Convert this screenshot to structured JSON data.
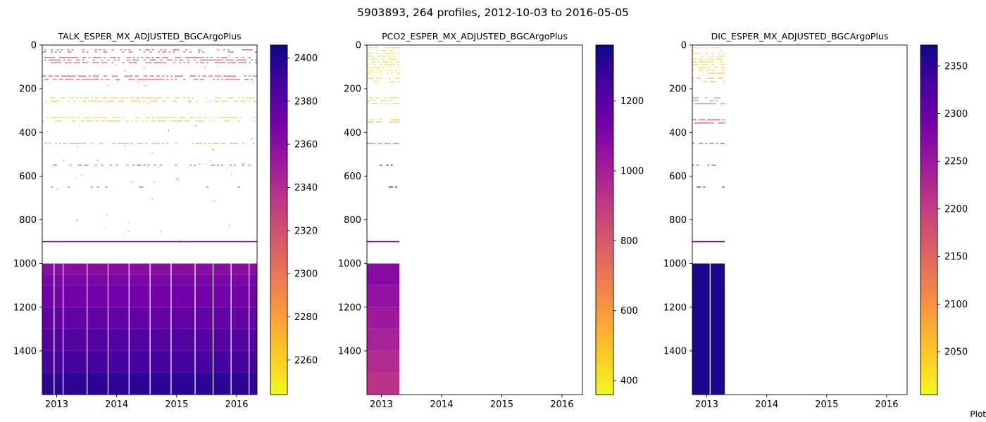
{
  "figure": {
    "title": "5903893, 264 profiles, 2012-10-03 to 2016-05-05",
    "footer_note": "Plot"
  },
  "colormap": {
    "name": "plasma",
    "stops": [
      "#f0f921",
      "#fdca26",
      "#fb9f3a",
      "#ed7953",
      "#d8576b",
      "#bd3786",
      "#9c179e",
      "#7201a8",
      "#46039f",
      "#0d0887"
    ]
  },
  "chart_data": [
    {
      "type": "heatmap",
      "title": "TALK_ESPER_MX_ADJUSTED_BGCArgoPlus",
      "x_range": [
        2012.76,
        2016.34
      ],
      "x_ticks": [
        2013,
        2014,
        2015,
        2016
      ],
      "x_tick_labels": [
        "2013",
        "2014",
        "2015",
        "2016"
      ],
      "y_range": [
        0,
        1600
      ],
      "y_inverted": true,
      "y_ticks": [
        0,
        200,
        400,
        600,
        800,
        1000,
        1200,
        1400
      ],
      "y_tick_labels": [
        "0",
        "200",
        "400",
        "600",
        "800",
        "1000",
        "1200",
        "1400"
      ],
      "data_x_extent": [
        2012.76,
        2016.34
      ],
      "colorbar": {
        "range": [
          2244,
          2406
        ],
        "ticks": [
          2260,
          2280,
          2300,
          2320,
          2340,
          2360,
          2380,
          2400
        ],
        "tick_labels": [
          "2260",
          "2280",
          "2300",
          "2320",
          "2340",
          "2360",
          "2380",
          "2400"
        ]
      },
      "sparse_bands": [
        {
          "depth": [
            20,
            40
          ],
          "value": 2322,
          "density": 0.35
        },
        {
          "depth": [
            55,
            90
          ],
          "value": 2315,
          "density": 0.6
        },
        {
          "depth": [
            140,
            170
          ],
          "value": 2318,
          "density": 0.65
        },
        {
          "depth": [
            240,
            270
          ],
          "value": 2262,
          "density": 0.55
        },
        {
          "depth": [
            330,
            360
          ],
          "value": 2258,
          "density": 0.55
        },
        {
          "depth": [
            448,
            452
          ],
          "value": 2278,
          "density": 0.5
        },
        {
          "depth": [
            548,
            552
          ],
          "value": 2316,
          "density": 0.35
        },
        {
          "depth": [
            648,
            652
          ],
          "value": 2330,
          "density": 0.08
        }
      ],
      "scattered_points": [
        {
          "depth": [
            20,
            900
          ],
          "value": 2300,
          "count": 60
        }
      ],
      "solid_lines": [
        {
          "depth": 900,
          "value": 2365
        }
      ],
      "deep_blocks": [
        {
          "depth": [
            1000,
            1050
          ],
          "value": 2360
        },
        {
          "depth": [
            1050,
            1100
          ],
          "value": 2366
        },
        {
          "depth": [
            1100,
            1200
          ],
          "value": 2370
        },
        {
          "depth": [
            1200,
            1300
          ],
          "value": 2376
        },
        {
          "depth": [
            1300,
            1400
          ],
          "value": 2382
        },
        {
          "depth": [
            1400,
            1500
          ],
          "value": 2388
        },
        {
          "depth": [
            1500,
            1600
          ],
          "value": 2396
        }
      ],
      "gap_columns": [
        2012.95,
        2013.1,
        2013.5,
        2013.85,
        2014.2,
        2014.55,
        2014.9,
        2015.3,
        2015.6,
        2015.9,
        2016.2
      ]
    },
    {
      "type": "heatmap",
      "title": "PCO2_ESPER_MX_ADJUSTED_BGCArgoPlus",
      "x_range": [
        2012.76,
        2016.34
      ],
      "x_ticks": [
        2013,
        2014,
        2015,
        2016
      ],
      "x_tick_labels": [
        "2013",
        "2014",
        "2015",
        "2016"
      ],
      "y_range": [
        0,
        1600
      ],
      "y_inverted": true,
      "y_ticks": [
        0,
        200,
        400,
        600,
        800,
        1000,
        1200,
        1400
      ],
      "y_tick_labels": [
        "0",
        "200",
        "400",
        "600",
        "800",
        "1000",
        "1200",
        "1400"
      ],
      "data_x_extent": [
        2012.76,
        2013.3
      ],
      "colorbar": {
        "range": [
          360,
          1360
        ],
        "ticks": [
          400,
          600,
          800,
          1000,
          1200
        ],
        "tick_labels": [
          "400",
          "600",
          "800",
          "1000",
          "1200"
        ]
      },
      "sparse_bands": [
        {
          "depth": [
            10,
            140
          ],
          "value": 420,
          "density": 0.45
        },
        {
          "depth": [
            150,
            180
          ],
          "value": 430,
          "density": 0.6
        },
        {
          "depth": [
            240,
            280
          ],
          "value": 440,
          "density": 0.6
        },
        {
          "depth": [
            340,
            360
          ],
          "value": 520,
          "density": 0.7
        },
        {
          "depth": [
            448,
            452
          ],
          "value": 800,
          "density": 0.6
        },
        {
          "depth": [
            548,
            552
          ],
          "value": 1300,
          "density": 0.3
        },
        {
          "depth": [
            648,
            652
          ],
          "value": 1350,
          "density": 0.2
        }
      ],
      "scattered_points": [],
      "solid_lines": [
        {
          "depth": 900,
          "value": 1140
        }
      ],
      "deep_blocks": [
        {
          "depth": [
            1000,
            1100
          ],
          "value": 1080
        },
        {
          "depth": [
            1100,
            1200
          ],
          "value": 1050
        },
        {
          "depth": [
            1200,
            1300
          ],
          "value": 1020
        },
        {
          "depth": [
            1300,
            1400
          ],
          "value": 990
        },
        {
          "depth": [
            1400,
            1500
          ],
          "value": 960
        },
        {
          "depth": [
            1500,
            1600
          ],
          "value": 930
        }
      ],
      "gap_columns": []
    },
    {
      "type": "heatmap",
      "title": "DIC_ESPER_MX_ADJUSTED_BGCArgoPlus",
      "x_range": [
        2012.76,
        2016.34
      ],
      "x_ticks": [
        2013,
        2014,
        2015,
        2016
      ],
      "x_tick_labels": [
        "2013",
        "2014",
        "2015",
        "2016"
      ],
      "y_range": [
        0,
        1600
      ],
      "y_inverted": true,
      "y_ticks": [
        0,
        200,
        400,
        600,
        800,
        1000,
        1200,
        1400
      ],
      "y_tick_labels": [
        "0",
        "200",
        "400",
        "600",
        "800",
        "1000",
        "1200",
        "1400"
      ],
      "data_x_extent": [
        2012.76,
        2013.3
      ],
      "colorbar": {
        "range": [
          2005,
          2372
        ],
        "ticks": [
          2050,
          2100,
          2150,
          2200,
          2250,
          2300,
          2350
        ],
        "tick_labels": [
          "2050",
          "2100",
          "2150",
          "2200",
          "2250",
          "2300",
          "2350"
        ]
      },
      "sparse_bands": [
        {
          "depth": [
            10,
            140
          ],
          "value": 2040,
          "density": 0.45
        },
        {
          "depth": [
            150,
            180
          ],
          "value": 2060,
          "density": 0.6
        },
        {
          "depth": [
            240,
            280
          ],
          "value": 2130,
          "density": 0.6
        },
        {
          "depth": [
            340,
            370
          ],
          "value": 2180,
          "density": 0.7
        },
        {
          "depth": [
            448,
            452
          ],
          "value": 2200,
          "density": 0.6
        },
        {
          "depth": [
            548,
            552
          ],
          "value": 2220,
          "density": 0.35
        },
        {
          "depth": [
            648,
            652
          ],
          "value": 2300,
          "density": 0.2
        }
      ],
      "scattered_points": [],
      "solid_lines": [
        {
          "depth": 900,
          "value": 2300
        }
      ],
      "deep_blocks": [
        {
          "depth": [
            1000,
            1600
          ],
          "value": 2360
        }
      ],
      "gap_columns": [
        2013.05
      ]
    }
  ]
}
